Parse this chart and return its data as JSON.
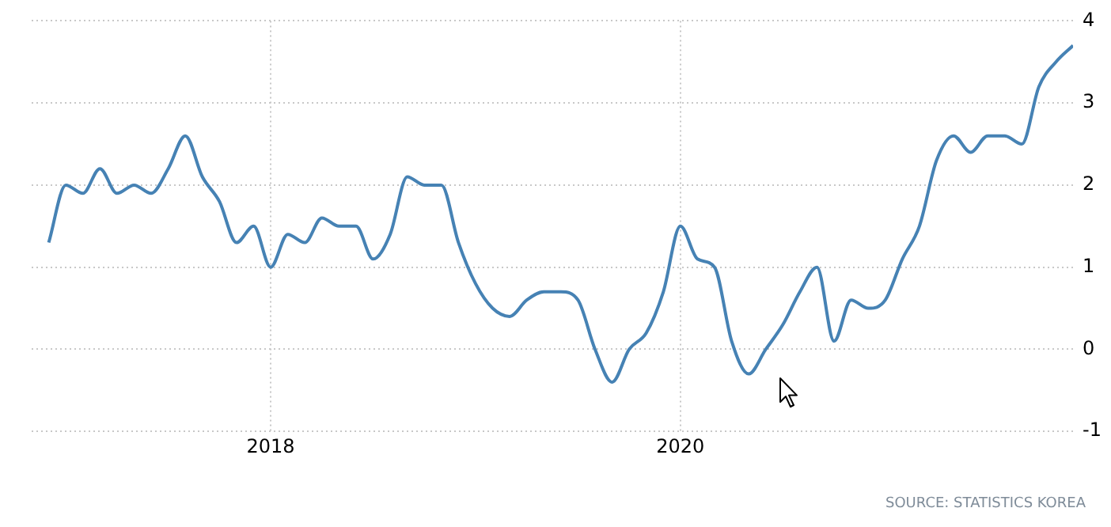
{
  "chart_data": {
    "type": "line",
    "x": [
      "2016-12",
      "2017-01",
      "2017-02",
      "2017-03",
      "2017-04",
      "2017-05",
      "2017-06",
      "2017-07",
      "2017-08",
      "2017-09",
      "2017-10",
      "2017-11",
      "2017-12",
      "2018-01",
      "2018-02",
      "2018-03",
      "2018-04",
      "2018-05",
      "2018-06",
      "2018-07",
      "2018-08",
      "2018-09",
      "2018-10",
      "2018-11",
      "2018-12",
      "2019-01",
      "2019-02",
      "2019-03",
      "2019-04",
      "2019-05",
      "2019-06",
      "2019-07",
      "2019-08",
      "2019-09",
      "2019-10",
      "2019-11",
      "2019-12",
      "2020-01",
      "2020-02",
      "2020-03",
      "2020-04",
      "2020-05",
      "2020-06",
      "2020-07",
      "2020-08",
      "2020-09",
      "2020-10",
      "2020-11",
      "2020-12",
      "2021-01",
      "2021-02",
      "2021-03",
      "2021-04",
      "2021-05",
      "2021-06",
      "2021-07",
      "2021-08",
      "2021-09",
      "2021-10",
      "2021-11",
      "2021-12"
    ],
    "series": [
      {
        "color": "#4682b4",
        "values": [
          1.3,
          2.0,
          1.9,
          2.2,
          1.9,
          2.0,
          1.9,
          2.2,
          2.6,
          2.1,
          1.8,
          1.3,
          1.5,
          1.0,
          1.4,
          1.3,
          1.6,
          1.5,
          1.5,
          1.1,
          1.4,
          2.1,
          2.0,
          2.0,
          1.3,
          0.8,
          0.5,
          0.4,
          0.6,
          0.7,
          0.7,
          0.6,
          0.0,
          -0.4,
          0.0,
          0.2,
          0.7,
          1.5,
          1.1,
          1.0,
          0.1,
          -0.3,
          0.0,
          0.3,
          0.7,
          1.0,
          0.1,
          0.6,
          0.5,
          0.6,
          1.1,
          1.5,
          2.3,
          2.6,
          2.4,
          2.6,
          2.6,
          2.5,
          3.2,
          3.5,
          3.7
        ]
      }
    ],
    "xlim": [
      "2016-11",
      "2021-12"
    ],
    "xticks": [
      {
        "value": "2018-01",
        "label": "2018"
      },
      {
        "value": "2020-01",
        "label": "2020"
      }
    ],
    "ylim": [
      -1,
      4
    ],
    "yticks": [
      -1,
      0,
      1,
      2,
      3,
      4
    ],
    "grid": true,
    "legend": false,
    "marker": "none",
    "line_style": "solid",
    "annotations": [
      "SOURCE: STATISTICS KOREA"
    ]
  }
}
